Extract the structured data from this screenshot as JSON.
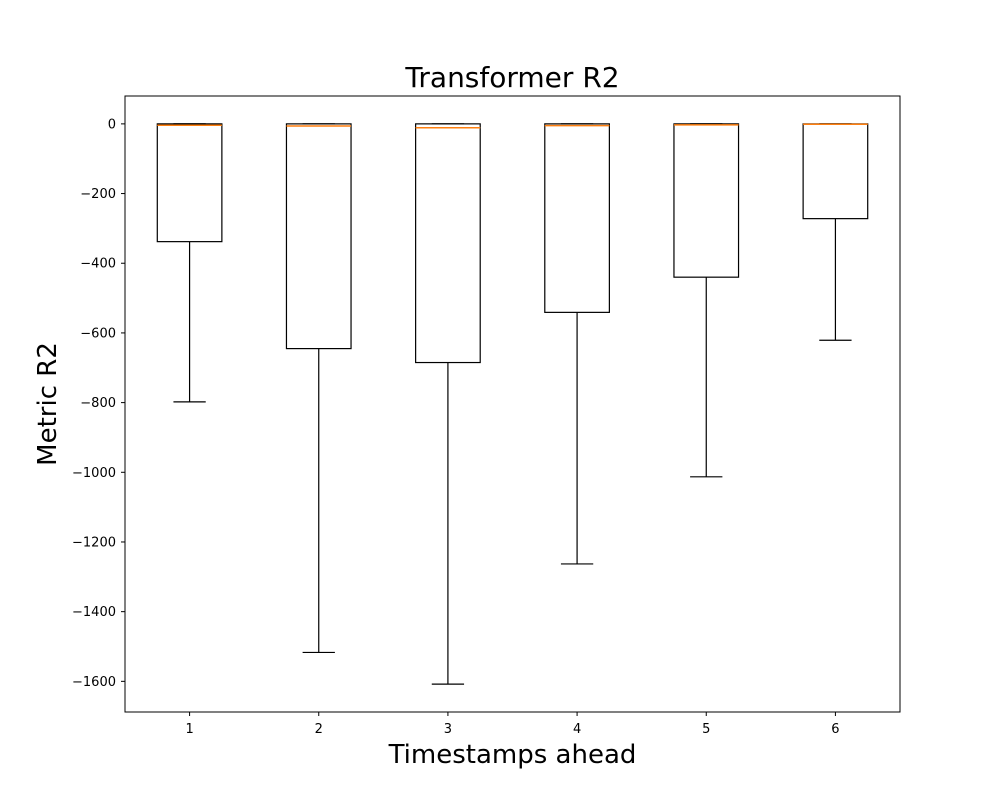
{
  "chart_data": {
    "type": "box",
    "title": "Transformer R2",
    "xlabel": "Timestamps ahead",
    "ylabel": "Metric R2",
    "categories": [
      "1",
      "2",
      "3",
      "4",
      "5",
      "6"
    ],
    "boxes": [
      {
        "label": "1",
        "whisker_low": -798,
        "q1": -338,
        "median": -4,
        "q3": 0,
        "whisker_high": 0
      },
      {
        "label": "2",
        "whisker_low": -1517,
        "q1": -645,
        "median": -6,
        "q3": 0,
        "whisker_high": 0
      },
      {
        "label": "3",
        "whisker_low": -1608,
        "q1": -685,
        "median": -11,
        "q3": 0,
        "whisker_high": 0
      },
      {
        "label": "4",
        "whisker_low": -1263,
        "q1": -541,
        "median": -5,
        "q3": 0,
        "whisker_high": 0
      },
      {
        "label": "5",
        "whisker_low": -1013,
        "q1": -440,
        "median": -3,
        "q3": 0,
        "whisker_high": 0
      },
      {
        "label": "6",
        "whisker_low": -621,
        "q1": -272,
        "median": -1,
        "q3": 0,
        "whisker_high": 0
      }
    ],
    "yticks": [
      0,
      -200,
      -400,
      -600,
      -800,
      -1000,
      -1200,
      -1400,
      -1600
    ],
    "ytick_labels": [
      "0",
      "−200",
      "−400",
      "−600",
      "−800",
      "−1000",
      "−1200",
      "−1400",
      "−1600"
    ],
    "ylim": [
      -1688,
      80
    ],
    "xlim": [
      0.5,
      6.5
    ],
    "grid": false,
    "colors": {
      "box": "#000000",
      "median": "#ff7f0e",
      "background": "#ffffff"
    }
  }
}
